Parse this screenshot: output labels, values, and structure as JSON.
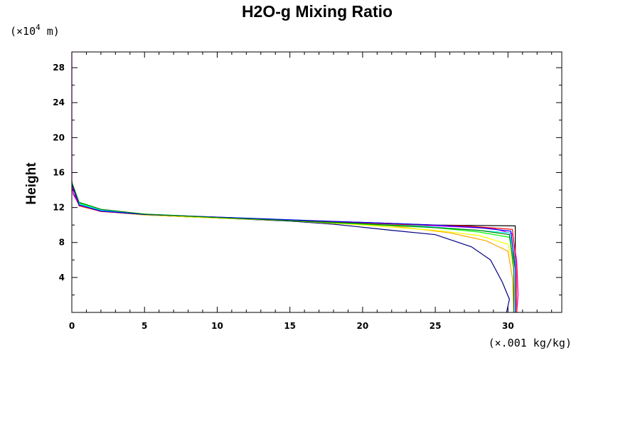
{
  "chart_data": {
    "type": "line",
    "title": "H2O-g Mixing Ratio",
    "ylabel": "Height",
    "xunits": "(×.001 kg/kg)",
    "yunits_prefix": "(×10",
    "yunits_exp": "4",
    "yunits_suffix": " m)",
    "xlim": [
      0,
      33.7
    ],
    "ylim": [
      0,
      29.8
    ],
    "xticks": [
      0,
      5,
      10,
      15,
      20,
      25,
      30
    ],
    "xtick_labels": [
      "0",
      "5",
      "10",
      "15",
      "20",
      "25",
      "30"
    ],
    "yticks": [
      4,
      8,
      12,
      16,
      20,
      24,
      28
    ],
    "ytick_labels": [
      "4",
      "8",
      "12",
      "16",
      "20",
      "24",
      "28"
    ],
    "grid": false,
    "series": [
      {
        "color": "#000000",
        "points": [
          [
            30.5,
            0
          ],
          [
            30.5,
            9.9
          ],
          [
            25,
            10.0
          ],
          [
            20,
            10.3
          ],
          [
            15,
            10.55
          ],
          [
            10,
            10.8
          ],
          [
            5,
            11.15
          ],
          [
            2,
            11.6
          ],
          [
            0.5,
            12.4
          ],
          [
            0.1,
            13.6
          ],
          [
            0,
            15
          ]
        ]
      },
      {
        "color": "#000080",
        "points": [
          [
            29.9,
            0
          ],
          [
            30.1,
            1.5
          ],
          [
            29.6,
            3.5
          ],
          [
            28.8,
            6
          ],
          [
            27.5,
            7.5
          ],
          [
            25,
            8.9
          ],
          [
            22,
            9.4
          ],
          [
            18,
            10.1
          ],
          [
            15,
            10.45
          ],
          [
            10,
            10.8
          ],
          [
            5,
            11.2
          ],
          [
            2,
            11.7
          ],
          [
            0.5,
            12.5
          ],
          [
            0.1,
            13.6
          ],
          [
            0,
            15
          ]
        ]
      },
      {
        "color": "#ff00ff",
        "points": [
          [
            30.6,
            0
          ],
          [
            30.7,
            2
          ],
          [
            30.6,
            6
          ],
          [
            30.3,
            9
          ],
          [
            29,
            9.6
          ],
          [
            25,
            9.9
          ],
          [
            20,
            10.25
          ],
          [
            15,
            10.55
          ],
          [
            10,
            10.85
          ],
          [
            5,
            11.2
          ],
          [
            2,
            11.6
          ],
          [
            0.5,
            12.3
          ],
          [
            0.1,
            13.5
          ],
          [
            0,
            15
          ],
          [
            0,
            29.8
          ]
        ]
      },
      {
        "color": "#ffa500",
        "points": [
          [
            30.4,
            0
          ],
          [
            30.3,
            4
          ],
          [
            30,
            7
          ],
          [
            28.5,
            8.2
          ],
          [
            26,
            9.1
          ],
          [
            22,
            9.9
          ],
          [
            18,
            10.2
          ],
          [
            15,
            10.5
          ],
          [
            10,
            10.8
          ],
          [
            5,
            11.15
          ],
          [
            2,
            11.6
          ],
          [
            0.5,
            12.3
          ],
          [
            0,
            14.6
          ]
        ]
      },
      {
        "color": "#ffff00",
        "points": [
          [
            30.5,
            0
          ],
          [
            30.4,
            5
          ],
          [
            30,
            7.8
          ],
          [
            28,
            8.8
          ],
          [
            25,
            9.4
          ],
          [
            20,
            10.0
          ],
          [
            15,
            10.5
          ],
          [
            10,
            10.8
          ],
          [
            5,
            11.15
          ],
          [
            2,
            11.6
          ],
          [
            0.5,
            12.3
          ],
          [
            0,
            14.6
          ]
        ]
      },
      {
        "color": "#00ff00",
        "points": [
          [
            30.5,
            0
          ],
          [
            30.5,
            5
          ],
          [
            30.1,
            8.6
          ],
          [
            28,
            9.2
          ],
          [
            25,
            9.7
          ],
          [
            20,
            10.1
          ],
          [
            15,
            10.5
          ],
          [
            10,
            10.85
          ],
          [
            5,
            11.25
          ],
          [
            2,
            11.75
          ],
          [
            0.5,
            12.5
          ],
          [
            0,
            14.8
          ]
        ]
      },
      {
        "color": "#00ffff",
        "points": [
          [
            30.5,
            0
          ],
          [
            30.5,
            6
          ],
          [
            30.1,
            9.1
          ],
          [
            27,
            9.5
          ],
          [
            24,
            9.9
          ],
          [
            20,
            10.25
          ],
          [
            15,
            10.6
          ],
          [
            10,
            10.9
          ],
          [
            5,
            11.25
          ],
          [
            2,
            11.7
          ],
          [
            0.5,
            12.4
          ],
          [
            0,
            14.8
          ]
        ]
      },
      {
        "color": "#ff0000",
        "points": [
          [
            30.6,
            0
          ],
          [
            30.6,
            5
          ],
          [
            30.3,
            9.5
          ],
          [
            27,
            9.9
          ],
          [
            23,
            10.05
          ],
          [
            20,
            10.25
          ],
          [
            15,
            10.55
          ],
          [
            10,
            10.9
          ],
          [
            5,
            11.2
          ],
          [
            2,
            11.55
          ],
          [
            0.5,
            12.2
          ],
          [
            0,
            14.6
          ]
        ]
      },
      {
        "color": "#0000ff",
        "points": [
          [
            30.5,
            0
          ],
          [
            30.5,
            5
          ],
          [
            30.2,
            9.3
          ],
          [
            28,
            9.7
          ],
          [
            25,
            10.0
          ],
          [
            20,
            10.3
          ],
          [
            15,
            10.6
          ],
          [
            10,
            10.9
          ],
          [
            5,
            11.2
          ],
          [
            2,
            11.6
          ],
          [
            0.5,
            12.3
          ],
          [
            0,
            14.7
          ]
        ]
      },
      {
        "color": "#008000",
        "points": [
          [
            30.4,
            0
          ],
          [
            30.4,
            5
          ],
          [
            30.1,
            8.9
          ],
          [
            28,
            9.4
          ],
          [
            24,
            9.8
          ],
          [
            20,
            10.15
          ],
          [
            15,
            10.5
          ],
          [
            10,
            10.85
          ],
          [
            5,
            11.25
          ],
          [
            2,
            11.8
          ],
          [
            0.5,
            12.6
          ],
          [
            0,
            14.9
          ]
        ]
      }
    ]
  }
}
